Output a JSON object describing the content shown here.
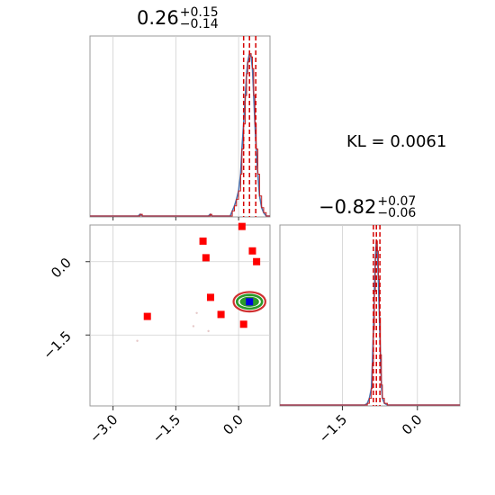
{
  "chart_data": {
    "type": "corner",
    "kl_label": "KL = 0.0061",
    "param_a": {
      "value": "0.26",
      "plus": "+0.15",
      "minus": "−0.14",
      "quantiles": [
        0.12,
        0.26,
        0.41
      ],
      "xlim": [
        -3.55,
        0.75
      ],
      "ticks": [
        -3.0,
        -1.5,
        0.0
      ],
      "tick_labels": [
        "−3.0",
        "−1.5",
        "0.0"
      ]
    },
    "param_b": {
      "value": "−0.82",
      "plus": "+0.07",
      "minus": "−0.06",
      "quantiles": [
        -0.88,
        -0.82,
        -0.75
      ],
      "xlim": [
        -2.75,
        0.85
      ],
      "ticks": [
        -1.5,
        0.0
      ],
      "tick_labels": [
        "−1.5",
        "0.0"
      ]
    },
    "scatter": {
      "xlim": [
        -3.55,
        0.75
      ],
      "ylim": [
        -2.95,
        0.75
      ],
      "yticks": [
        0.0,
        -1.5
      ],
      "ytick_labels": [
        "0.0",
        "−1.5"
      ],
      "ensemble_points": [
        [
          0.08,
          0.72
        ],
        [
          -0.85,
          0.42
        ],
        [
          -0.78,
          0.08
        ],
        [
          0.33,
          0.22
        ],
        [
          0.43,
          0.0
        ],
        [
          -0.67,
          -0.73
        ],
        [
          -0.42,
          -1.08
        ],
        [
          0.12,
          -1.28
        ],
        [
          -2.18,
          -1.12
        ]
      ],
      "mean_point": [
        0.26,
        -0.82
      ],
      "faint_points": [
        [
          -2.42,
          -1.62
        ],
        [
          -1.08,
          -1.32
        ],
        [
          -0.72,
          -1.42
        ],
        [
          -1.0,
          -1.05
        ]
      ],
      "contour_ellipses": [
        {
          "rx": 0.38,
          "ry": 0.2
        },
        {
          "rx": 0.3,
          "ry": 0.14
        },
        {
          "rx": 0.2,
          "ry": 0.08
        }
      ]
    },
    "hist_a_curve": [
      [
        -3.55,
        0.0
      ],
      [
        -2.4,
        0.0
      ],
      [
        -2.35,
        0.01
      ],
      [
        -2.3,
        0.0
      ],
      [
        -0.72,
        0.0
      ],
      [
        -0.68,
        0.01
      ],
      [
        -0.64,
        0.0
      ],
      [
        -0.2,
        0.0
      ],
      [
        -0.15,
        0.03
      ],
      [
        -0.1,
        0.06
      ],
      [
        -0.05,
        0.1
      ],
      [
        0.0,
        0.15
      ],
      [
        0.05,
        0.25
      ],
      [
        0.08,
        0.4
      ],
      [
        0.12,
        0.55
      ],
      [
        0.16,
        0.72
      ],
      [
        0.19,
        0.85
      ],
      [
        0.22,
        0.92
      ],
      [
        0.26,
        0.97
      ],
      [
        0.3,
        0.95
      ],
      [
        0.33,
        0.88
      ],
      [
        0.36,
        0.72
      ],
      [
        0.39,
        0.55
      ],
      [
        0.42,
        0.4
      ],
      [
        0.46,
        0.25
      ],
      [
        0.5,
        0.12
      ],
      [
        0.55,
        0.05
      ],
      [
        0.6,
        0.02
      ],
      [
        0.66,
        0.0
      ],
      [
        0.75,
        0.0
      ]
    ],
    "hist_b_curve": [
      [
        -2.75,
        0.0
      ],
      [
        -1.05,
        0.0
      ],
      [
        -1.0,
        0.01
      ],
      [
        -0.96,
        0.04
      ],
      [
        -0.92,
        0.1
      ],
      [
        -0.9,
        0.25
      ],
      [
        -0.88,
        0.45
      ],
      [
        -0.86,
        0.68
      ],
      [
        -0.84,
        0.88
      ],
      [
        -0.82,
        0.98
      ],
      [
        -0.8,
        0.92
      ],
      [
        -0.78,
        0.75
      ],
      [
        -0.76,
        0.52
      ],
      [
        -0.74,
        0.3
      ],
      [
        -0.72,
        0.12
      ],
      [
        -0.7,
        0.04
      ],
      [
        -0.66,
        0.01
      ],
      [
        -0.6,
        0.0
      ],
      [
        0.85,
        0.0
      ]
    ],
    "colors": {
      "hist_step": "#c81e1e",
      "hist_fill": "#4a72b0",
      "quantile_line": "#d40000",
      "ensemble_marker": "#ff0000",
      "mean_marker": "#0000dd",
      "contour_outer": "#d03030",
      "contour_mid": "#2a9a2a",
      "faint_marker": "#e6c8c8",
      "grid": "#d0d0d0",
      "frame": "#9a9a9a"
    }
  }
}
